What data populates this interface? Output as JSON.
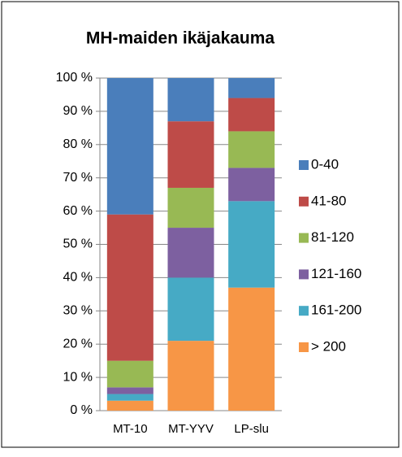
{
  "chart_data": {
    "type": "stacked_bar",
    "title": "MH-maiden ikäjakauma",
    "categories": [
      "MT-10",
      "MT-YYV",
      "LP-slu"
    ],
    "series": [
      {
        "name": "0-40",
        "color": "#4a7ebb",
        "values": [
          41,
          13,
          6
        ]
      },
      {
        "name": "41-80",
        "color": "#be4b48",
        "values": [
          44,
          20,
          10
        ]
      },
      {
        "name": "81-120",
        "color": "#98b954",
        "values": [
          8,
          12,
          11
        ]
      },
      {
        "name": "121-160",
        "color": "#7d60a0",
        "values": [
          2,
          15,
          10
        ]
      },
      {
        "name": "161-200",
        "color": "#46aac5",
        "values": [
          2,
          19,
          26
        ]
      },
      {
        "name": "> 200",
        "color": "#f79646",
        "values": [
          3,
          21,
          37
        ]
      }
    ],
    "ylim": [
      0,
      100
    ],
    "yticks": [
      {
        "value": 0,
        "label": "0 %"
      },
      {
        "value": 10,
        "label": "10 %"
      },
      {
        "value": 20,
        "label": "20 %"
      },
      {
        "value": 30,
        "label": "30 %"
      },
      {
        "value": 40,
        "label": "40 %"
      },
      {
        "value": 50,
        "label": "50 %"
      },
      {
        "value": 60,
        "label": "60 %"
      },
      {
        "value": 70,
        "label": "70 %"
      },
      {
        "value": 80,
        "label": "80 %"
      },
      {
        "value": 90,
        "label": "90 %"
      },
      {
        "value": 100,
        "label": "100 %"
      }
    ],
    "grid": true,
    "legend": "right"
  }
}
